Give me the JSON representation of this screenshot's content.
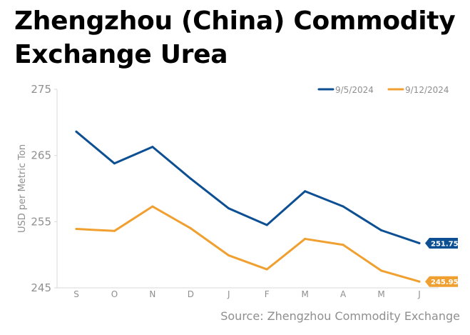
{
  "title_lines": [
    "Zhengzhou (China) Commodity",
    "Exchange Urea"
  ],
  "source": "Source: Zhengzhou Commodity Exchange",
  "chart_data": {
    "type": "line",
    "title": "Zhengzhou (China) Commodity Exchange Urea",
    "ylabel": "USD per Metric Ton",
    "xlabel": "",
    "categories": [
      "S",
      "O",
      "N",
      "D",
      "J",
      "F",
      "M",
      "A",
      "M",
      "J"
    ],
    "ylim": [
      245,
      275
    ],
    "yticks": [
      245,
      255,
      265,
      275
    ],
    "grid": false,
    "legend_position": "top-right",
    "series": [
      {
        "name": "9/5/2024",
        "color": "#0d4f93",
        "values": [
          268.6,
          263.8,
          266.3,
          261.5,
          257.0,
          254.5,
          259.6,
          257.3,
          253.7,
          251.75
        ],
        "end_label": "251.75"
      },
      {
        "name": "9/12/2024",
        "color": "#f0a030",
        "values": [
          253.9,
          253.6,
          257.3,
          254.0,
          249.9,
          247.8,
          252.4,
          251.5,
          247.6,
          245.95
        ],
        "end_label": "245.95"
      }
    ]
  }
}
